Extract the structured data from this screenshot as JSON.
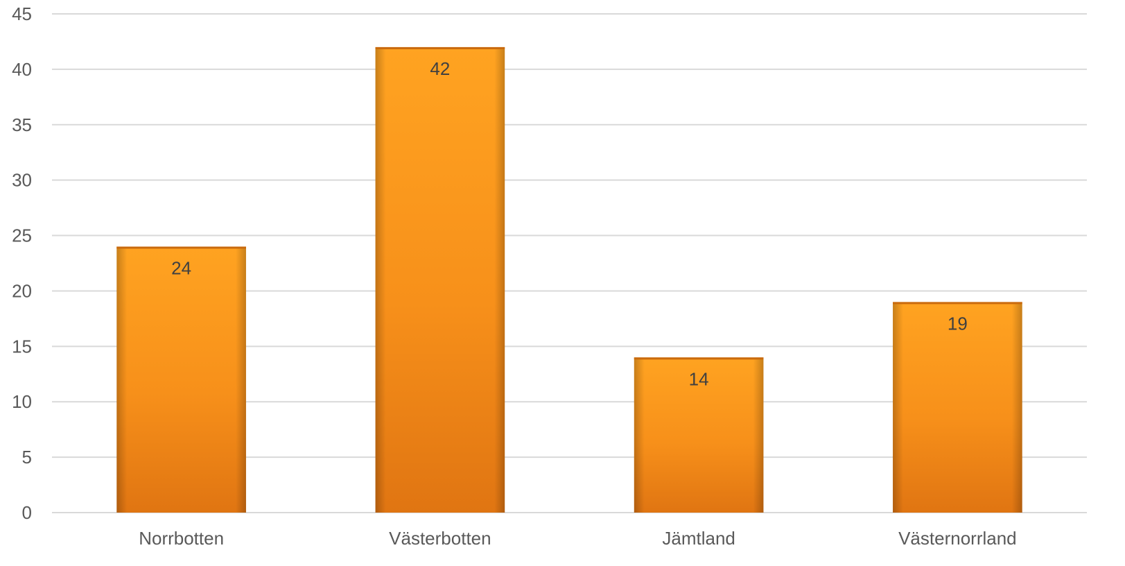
{
  "chart_data": {
    "type": "bar",
    "categories": [
      "Norrbotten",
      "Västerbotten",
      "Jämtland",
      "Västernorrland"
    ],
    "values": [
      24,
      42,
      14,
      19
    ],
    "data_labels": [
      "24",
      "42",
      "14",
      "19"
    ],
    "title": "",
    "xlabel": "",
    "ylabel": "",
    "ylim": [
      0,
      45
    ],
    "y_ticks": [
      0,
      5,
      10,
      15,
      20,
      25,
      30,
      35,
      40,
      45
    ],
    "y_tick_labels": [
      "0",
      "5",
      "10",
      "15",
      "20",
      "25",
      "30",
      "35",
      "40",
      "45"
    ],
    "grid": true,
    "legend": "none",
    "bar_color": "#f7941d",
    "bar_color_dark": "#e57a10",
    "grid_color": "#d9d9d9"
  }
}
